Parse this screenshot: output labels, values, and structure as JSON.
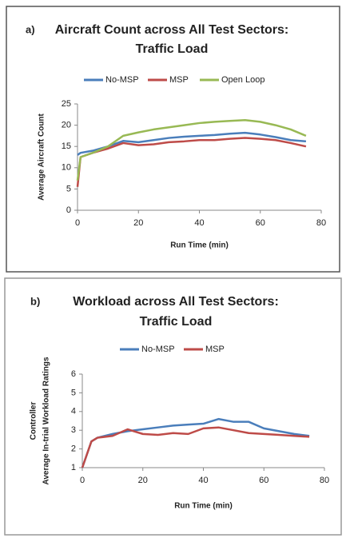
{
  "chart_data": [
    {
      "type": "line",
      "label": "a)",
      "title": [
        "Aircraft Count across All Test Sectors:",
        "Traffic Load"
      ],
      "xlabel": "Run Time (min)",
      "ylabel": [
        "Average Aircraft Count"
      ],
      "x": [
        0,
        1,
        5,
        10,
        15,
        20,
        25,
        30,
        35,
        40,
        45,
        50,
        55,
        60,
        65,
        70,
        75
      ],
      "series": [
        {
          "name": "No-MSP",
          "color": "#4a7ebb",
          "values": [
            13,
            13.5,
            14,
            15,
            16.3,
            16,
            16.5,
            17,
            17.3,
            17.5,
            17.7,
            18,
            18.2,
            17.8,
            17.2,
            16.5,
            16.2
          ]
        },
        {
          "name": "MSP",
          "color": "#be4b48",
          "values": [
            5.5,
            12.5,
            13.5,
            14.5,
            15.8,
            15.3,
            15.5,
            16,
            16.2,
            16.5,
            16.5,
            16.8,
            17,
            16.8,
            16.5,
            15.8,
            15
          ]
        },
        {
          "name": "Open Loop",
          "color": "#98b954",
          "values": [
            7,
            12.5,
            13.5,
            15,
            17.5,
            18.3,
            19,
            19.5,
            20,
            20.5,
            20.8,
            21,
            21.2,
            20.8,
            20,
            19,
            17.5
          ]
        }
      ],
      "xlim": [
        0,
        80
      ],
      "xticks": [
        0,
        20,
        40,
        60,
        80
      ],
      "ylim": [
        0,
        25
      ],
      "yticks": [
        0,
        5,
        10,
        15,
        20,
        25
      ],
      "grid": false
    },
    {
      "type": "line",
      "label": "b)",
      "title": [
        "Workload across All Test Sectors:",
        "Traffic Load"
      ],
      "xlabel": "Run Time (min)",
      "ylabel": [
        "Controller",
        "Average In-trial Workload Ratings"
      ],
      "x": [
        0,
        3,
        5,
        10,
        15,
        20,
        25,
        30,
        35,
        40,
        45,
        50,
        55,
        60,
        65,
        70,
        75
      ],
      "series": [
        {
          "name": "No-MSP",
          "color": "#4a7ebb",
          "values": [
            1,
            2.4,
            2.6,
            2.8,
            2.95,
            3.05,
            3.15,
            3.25,
            3.3,
            3.35,
            3.6,
            3.45,
            3.45,
            3.1,
            2.95,
            2.8,
            2.7
          ]
        },
        {
          "name": "MSP",
          "color": "#be4b48",
          "values": [
            1,
            2.4,
            2.6,
            2.7,
            3.05,
            2.8,
            2.75,
            2.85,
            2.8,
            3.1,
            3.15,
            3.0,
            2.85,
            2.8,
            2.75,
            2.7,
            2.65
          ]
        }
      ],
      "xlim": [
        0,
        80
      ],
      "xticks": [
        0,
        20,
        40,
        60,
        80
      ],
      "ylim": [
        1,
        6
      ],
      "yticks": [
        1,
        2,
        3,
        4,
        5,
        6
      ],
      "grid": false
    }
  ]
}
